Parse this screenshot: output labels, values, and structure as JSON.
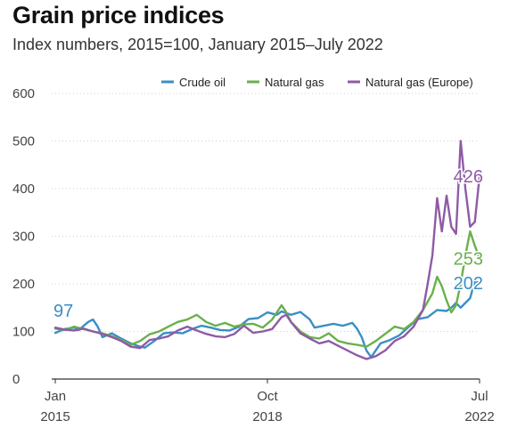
{
  "header": {
    "title": "Grain price indices",
    "subtitle": "Index numbers, 2015=100, January 2015–July 2022"
  },
  "chart_data": {
    "type": "line",
    "title": "Grain price indices",
    "subtitle": "Index numbers, 2015=100, January 2015–July 2022",
    "xlabel": "",
    "ylabel": "",
    "ylim": [
      0,
      600
    ],
    "yticks": [
      0,
      100,
      200,
      300,
      400,
      500,
      600
    ],
    "xlim": [
      "2015-01",
      "2022-07"
    ],
    "xticks": [
      {
        "date": "2015-01",
        "label": "Jan",
        "sublabel": "2015"
      },
      {
        "date": "2018-10",
        "label": "Oct",
        "sublabel": "2018"
      },
      {
        "date": "2022-07",
        "label": "Jul",
        "sublabel": "2022"
      }
    ],
    "grid": "horizontal",
    "legend": "top",
    "series": [
      {
        "name": "Crude oil",
        "color": "#3a8fc4",
        "end_label": "202",
        "start_label": "97",
        "points": [
          [
            "2015-01",
            97
          ],
          [
            "2015-03",
            105
          ],
          [
            "2015-05",
            108
          ],
          [
            "2015-06",
            103
          ],
          [
            "2015-08",
            120
          ],
          [
            "2015-09",
            125
          ],
          [
            "2015-10",
            110
          ],
          [
            "2015-11",
            88
          ],
          [
            "2016-01",
            96
          ],
          [
            "2016-03",
            85
          ],
          [
            "2016-05",
            75
          ],
          [
            "2016-07",
            68
          ],
          [
            "2016-08",
            66
          ],
          [
            "2016-10",
            80
          ],
          [
            "2016-12",
            96
          ],
          [
            "2017-02",
            98
          ],
          [
            "2017-04",
            96
          ],
          [
            "2017-06",
            105
          ],
          [
            "2017-08",
            112
          ],
          [
            "2017-10",
            108
          ],
          [
            "2017-12",
            103
          ],
          [
            "2018-02",
            102
          ],
          [
            "2018-04",
            110
          ],
          [
            "2018-06",
            126
          ],
          [
            "2018-08",
            128
          ],
          [
            "2018-10",
            140
          ],
          [
            "2018-12",
            135
          ],
          [
            "2019-01",
            142
          ],
          [
            "2019-03",
            135
          ],
          [
            "2019-05",
            141
          ],
          [
            "2019-07",
            125
          ],
          [
            "2019-08",
            108
          ],
          [
            "2019-10",
            112
          ],
          [
            "2019-12",
            116
          ],
          [
            "2020-02",
            112
          ],
          [
            "2020-04",
            118
          ],
          [
            "2020-05",
            106
          ],
          [
            "2020-06",
            88
          ],
          [
            "2020-07",
            60
          ],
          [
            "2020-08",
            46
          ],
          [
            "2020-10",
            75
          ],
          [
            "2020-12",
            82
          ],
          [
            "2021-02",
            92
          ],
          [
            "2021-04",
            110
          ],
          [
            "2021-06",
            126
          ],
          [
            "2021-08",
            130
          ],
          [
            "2021-10",
            145
          ],
          [
            "2021-12",
            143
          ],
          [
            "2022-01",
            150
          ],
          [
            "2022-02",
            160
          ],
          [
            "2022-03",
            150
          ],
          [
            "2022-04",
            160
          ],
          [
            "2022-05",
            170
          ],
          [
            "2022-06",
            205
          ],
          [
            "2022-07",
            202
          ]
        ]
      },
      {
        "name": "Natural gas",
        "color": "#6ab04c",
        "end_label": "253",
        "start_label": "",
        "points": [
          [
            "2015-01",
            106
          ],
          [
            "2015-03",
            103
          ],
          [
            "2015-05",
            110
          ],
          [
            "2015-07",
            105
          ],
          [
            "2015-09",
            100
          ],
          [
            "2015-11",
            96
          ],
          [
            "2016-01",
            90
          ],
          [
            "2016-03",
            82
          ],
          [
            "2016-05",
            72
          ],
          [
            "2016-07",
            80
          ],
          [
            "2016-09",
            94
          ],
          [
            "2016-11",
            100
          ],
          [
            "2017-01",
            110
          ],
          [
            "2017-03",
            120
          ],
          [
            "2017-05",
            125
          ],
          [
            "2017-07",
            135
          ],
          [
            "2017-09",
            120
          ],
          [
            "2017-11",
            112
          ],
          [
            "2018-01",
            118
          ],
          [
            "2018-03",
            110
          ],
          [
            "2018-05",
            115
          ],
          [
            "2018-07",
            116
          ],
          [
            "2018-09",
            108
          ],
          [
            "2018-11",
            125
          ],
          [
            "2019-01",
            155
          ],
          [
            "2019-02",
            140
          ],
          [
            "2019-03",
            120
          ],
          [
            "2019-05",
            100
          ],
          [
            "2019-07",
            88
          ],
          [
            "2019-09",
            85
          ],
          [
            "2019-11",
            96
          ],
          [
            "2020-01",
            80
          ],
          [
            "2020-03",
            75
          ],
          [
            "2020-05",
            72
          ],
          [
            "2020-07",
            68
          ],
          [
            "2020-09",
            80
          ],
          [
            "2020-11",
            95
          ],
          [
            "2021-01",
            110
          ],
          [
            "2021-03",
            105
          ],
          [
            "2021-05",
            120
          ],
          [
            "2021-07",
            145
          ],
          [
            "2021-09",
            180
          ],
          [
            "2021-10",
            215
          ],
          [
            "2021-11",
            195
          ],
          [
            "2021-12",
            165
          ],
          [
            "2022-01",
            140
          ],
          [
            "2022-02",
            155
          ],
          [
            "2022-03",
            200
          ],
          [
            "2022-04",
            260
          ],
          [
            "2022-05",
            310
          ],
          [
            "2022-06",
            280
          ],
          [
            "2022-07",
            253
          ]
        ]
      },
      {
        "name": "Natural gas (Europe)",
        "color": "#8e5ba6",
        "end_label": "426",
        "start_label": "",
        "points": [
          [
            "2015-01",
            108
          ],
          [
            "2015-03",
            104
          ],
          [
            "2015-05",
            102
          ],
          [
            "2015-07",
            106
          ],
          [
            "2015-09",
            100
          ],
          [
            "2015-11",
            95
          ],
          [
            "2016-01",
            88
          ],
          [
            "2016-03",
            80
          ],
          [
            "2016-05",
            68
          ],
          [
            "2016-07",
            65
          ],
          [
            "2016-09",
            82
          ],
          [
            "2016-11",
            85
          ],
          [
            "2017-01",
            90
          ],
          [
            "2017-03",
            102
          ],
          [
            "2017-05",
            110
          ],
          [
            "2017-07",
            102
          ],
          [
            "2017-09",
            95
          ],
          [
            "2017-11",
            90
          ],
          [
            "2018-01",
            88
          ],
          [
            "2018-03",
            95
          ],
          [
            "2018-05",
            112
          ],
          [
            "2018-07",
            97
          ],
          [
            "2018-09",
            100
          ],
          [
            "2018-11",
            105
          ],
          [
            "2019-01",
            130
          ],
          [
            "2019-02",
            135
          ],
          [
            "2019-03",
            120
          ],
          [
            "2019-05",
            96
          ],
          [
            "2019-07",
            85
          ],
          [
            "2019-09",
            75
          ],
          [
            "2019-11",
            80
          ],
          [
            "2020-01",
            70
          ],
          [
            "2020-03",
            60
          ],
          [
            "2020-05",
            50
          ],
          [
            "2020-07",
            42
          ],
          [
            "2020-09",
            48
          ],
          [
            "2020-11",
            60
          ],
          [
            "2021-01",
            80
          ],
          [
            "2021-03",
            90
          ],
          [
            "2021-05",
            110
          ],
          [
            "2021-07",
            145
          ],
          [
            "2021-08",
            200
          ],
          [
            "2021-09",
            260
          ],
          [
            "2021-10",
            380
          ],
          [
            "2021-11",
            310
          ],
          [
            "2021-12",
            385
          ],
          [
            "2022-01",
            320
          ],
          [
            "2022-02",
            305
          ],
          [
            "2022-03",
            500
          ],
          [
            "2022-04",
            400
          ],
          [
            "2022-05",
            320
          ],
          [
            "2022-06",
            330
          ],
          [
            "2022-07",
            426
          ]
        ]
      }
    ]
  }
}
